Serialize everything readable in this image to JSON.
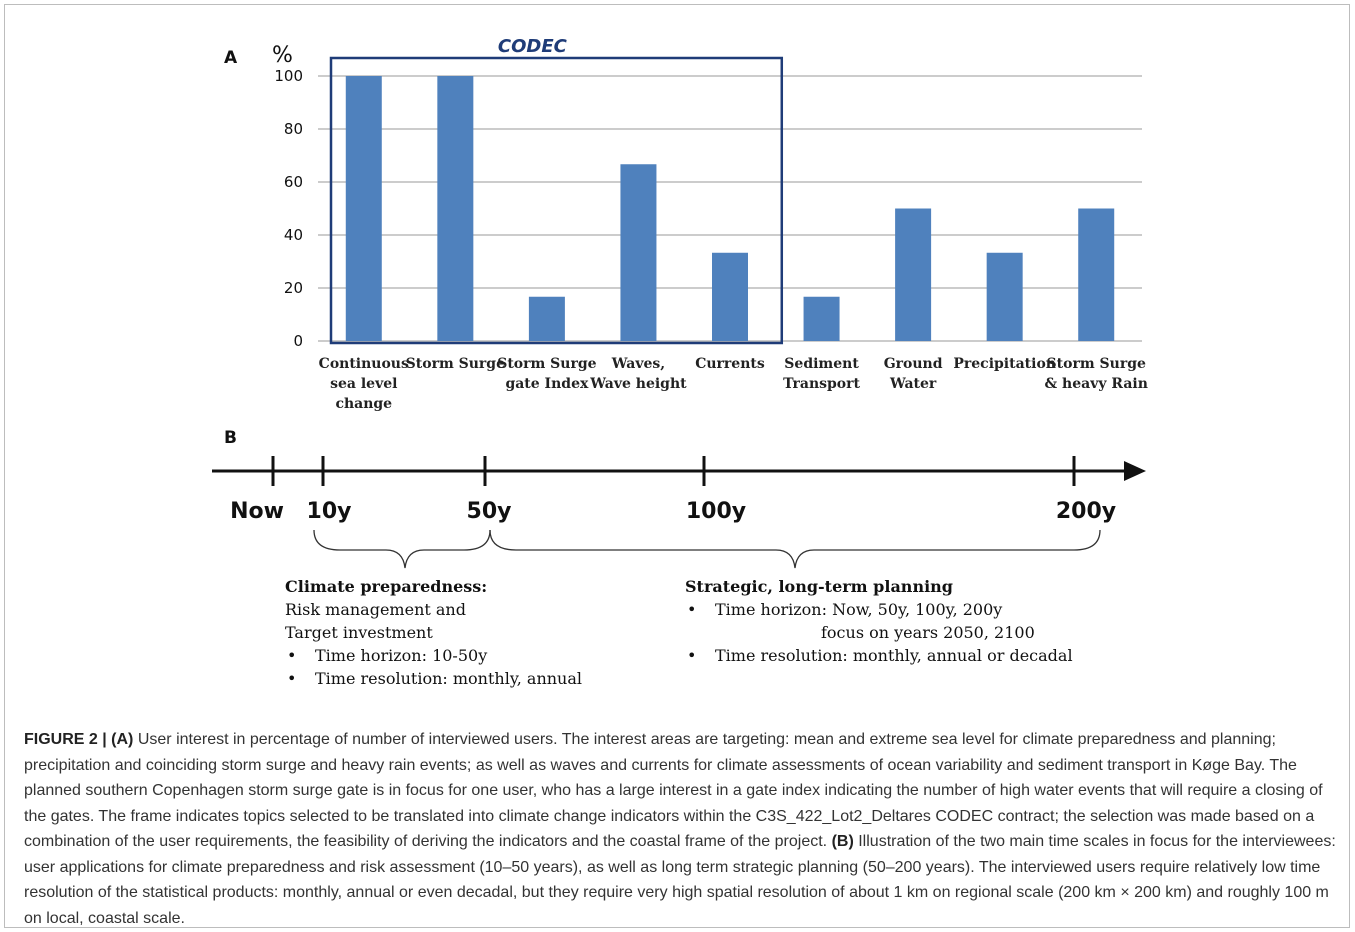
{
  "panel_a_letter": "A",
  "panel_b_letter": "B",
  "chart_data": {
    "type": "bar",
    "ylabel": "%",
    "ylim": [
      0,
      100
    ],
    "yticks": [
      "0",
      "20",
      "40",
      "60",
      "80",
      "100"
    ],
    "grid": true,
    "categories": [
      [
        "Continuous",
        "sea level",
        "change"
      ],
      [
        "Storm Surge"
      ],
      [
        "Storm Surge",
        "gate Index"
      ],
      [
        "Waves,",
        "Wave height"
      ],
      [
        "Currents"
      ],
      [
        "Sediment",
        "Transport"
      ],
      [
        "Ground",
        "Water"
      ],
      [
        "Precipitation"
      ],
      [
        "Storm Surge",
        "& heavy Rain"
      ]
    ],
    "values": [
      100,
      100,
      16.7,
      66.7,
      33.3,
      16.7,
      50,
      33.3,
      50
    ],
    "bar_color": "#4f81bd",
    "highlight_box": {
      "label": "CODEC",
      "color": "#1f3c78",
      "from_category": 0,
      "to_category": 4
    }
  },
  "timeline": {
    "ticks": [
      "Now",
      "10y",
      "50y",
      "100y",
      "200y"
    ],
    "left_group": {
      "title": "Climate preparedness:",
      "lines": [
        "Risk management and",
        "Target investment"
      ],
      "bullets": [
        "Time horizon: 10-50y",
        "Time resolution: monthly, annual"
      ]
    },
    "right_group": {
      "title": "Strategic, long-term planning",
      "bullet1": "Time horizon: Now, 50y, 100y, 200y",
      "bullet1_cont": "focus on years 2050, 2100",
      "bullet2": "Time resolution: monthly, annual or decadal"
    }
  },
  "caption": {
    "figure_label": "FIGURE 2 |",
    "a_label": "(A)",
    "a_text": "User interest in percentage of number of interviewed users. The interest areas are targeting: mean and extreme sea level for climate preparedness and planning; precipitation and coinciding storm surge and heavy rain events; as well as waves and currents for climate assessments of ocean variability and sediment transport in Køge Bay. The planned southern Copenhagen storm surge gate is in focus for one user, who has a large interest in a gate index indicating the number of high water events that will require a closing of the gates. The frame indicates topics selected to be translated into climate change indicators within the C3S_422_Lot2_Deltares CODEC contract; the selection was made based on a combination of the user requirements, the feasibility of deriving the indicators and the coastal frame of the project.",
    "b_label": "(B)",
    "b_text": "Illustration of the two main time scales in focus for the interviewees: user applications for climate preparedness and risk assessment (10–50 years), as well as long term strategic planning (50–200 years). The interviewed users require relatively low time resolution of the statistical products: monthly, annual or even decadal, but they require very high spatial resolution of about 1 km on regional scale (200 km × 200 km) and roughly 100 m on local, coastal scale."
  }
}
